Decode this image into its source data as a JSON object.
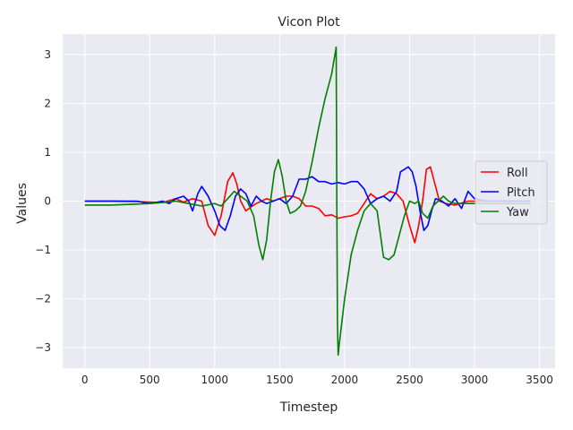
{
  "chart_data": {
    "type": "line",
    "title": "Vicon Plot",
    "xlabel": "Timestep",
    "ylabel": "Values",
    "xlim": [
      -170,
      3620
    ],
    "ylim": [
      -3.42,
      3.42
    ],
    "xticks": [
      0,
      500,
      1000,
      1500,
      2000,
      2500,
      3000,
      3500
    ],
    "xtick_labels": [
      "0",
      "500",
      "1000",
      "1500",
      "2000",
      "2500",
      "3000",
      "3500"
    ],
    "yticks": [
      -3,
      -2,
      -1,
      0,
      1,
      2,
      3
    ],
    "ytick_labels": [
      "−3",
      "−2",
      "−1",
      "0",
      "1",
      "2",
      "3"
    ],
    "grid": true,
    "legend_position": "center-right",
    "background": "#eaeaf2",
    "series": [
      {
        "name": "Roll",
        "color": "#ff0000",
        "x": [
          0,
          200,
          400,
          500,
          600,
          700,
          760,
          830,
          900,
          950,
          1000,
          1050,
          1100,
          1140,
          1170,
          1200,
          1240,
          1280,
          1320,
          1360,
          1400,
          1450,
          1500,
          1550,
          1600,
          1650,
          1700,
          1750,
          1800,
          1850,
          1900,
          1950,
          2000,
          2050,
          2100,
          2150,
          2200,
          2250,
          2300,
          2350,
          2400,
          2450,
          2500,
          2540,
          2570,
          2600,
          2630,
          2660,
          2700,
          2730,
          2780,
          2850,
          2950,
          3050,
          3150,
          3250,
          3350,
          3430
        ],
        "y": [
          0.0,
          0.0,
          -0.01,
          -0.02,
          -0.03,
          0.05,
          -0.02,
          0.05,
          0.0,
          -0.5,
          -0.7,
          -0.3,
          0.4,
          0.58,
          0.35,
          0.0,
          -0.2,
          -0.12,
          -0.05,
          0.0,
          0.05,
          0.0,
          0.05,
          0.1,
          0.1,
          0.05,
          -0.1,
          -0.1,
          -0.15,
          -0.3,
          -0.28,
          -0.35,
          -0.32,
          -0.3,
          -0.25,
          -0.05,
          0.15,
          0.05,
          0.1,
          0.2,
          0.15,
          0.0,
          -0.5,
          -0.85,
          -0.5,
          0.0,
          0.65,
          0.7,
          0.3,
          0.0,
          -0.05,
          -0.08,
          0.0,
          0.0,
          0.0,
          0.0,
          0.0,
          0.0
        ]
      },
      {
        "name": "Pitch",
        "color": "#0000ff",
        "x": [
          0,
          200,
          400,
          500,
          600,
          650,
          700,
          760,
          800,
          830,
          870,
          900,
          950,
          1000,
          1040,
          1080,
          1120,
          1160,
          1200,
          1240,
          1280,
          1320,
          1360,
          1400,
          1450,
          1500,
          1550,
          1600,
          1650,
          1700,
          1750,
          1800,
          1850,
          1900,
          1950,
          2000,
          2050,
          2100,
          2150,
          2200,
          2250,
          2300,
          2350,
          2400,
          2430,
          2460,
          2490,
          2520,
          2550,
          2580,
          2610,
          2640,
          2670,
          2700,
          2750,
          2800,
          2850,
          2900,
          2950,
          3000,
          3100,
          3200,
          3300,
          3430
        ],
        "y": [
          0.0,
          0.0,
          0.0,
          -0.05,
          0.0,
          -0.05,
          0.05,
          0.1,
          0.0,
          -0.2,
          0.15,
          0.3,
          0.1,
          -0.2,
          -0.5,
          -0.6,
          -0.3,
          0.1,
          0.25,
          0.15,
          -0.1,
          0.1,
          0.0,
          -0.05,
          0.0,
          0.05,
          -0.05,
          0.1,
          0.45,
          0.45,
          0.5,
          0.4,
          0.4,
          0.35,
          0.38,
          0.35,
          0.4,
          0.4,
          0.25,
          -0.05,
          0.05,
          0.1,
          0.0,
          0.2,
          0.6,
          0.65,
          0.7,
          0.6,
          0.3,
          -0.2,
          -0.6,
          -0.5,
          -0.2,
          0.05,
          0.0,
          -0.1,
          0.05,
          -0.15,
          0.2,
          0.05,
          0.0,
          0.0,
          0.0,
          0.0
        ]
      },
      {
        "name": "Yaw",
        "color": "#008000",
        "x": [
          0,
          200,
          400,
          500,
          600,
          700,
          800,
          900,
          1000,
          1050,
          1100,
          1150,
          1200,
          1250,
          1300,
          1340,
          1370,
          1400,
          1430,
          1460,
          1490,
          1520,
          1550,
          1580,
          1620,
          1660,
          1700,
          1750,
          1800,
          1850,
          1900,
          1935,
          1940,
          1945,
          1950,
          1960,
          2000,
          2050,
          2100,
          2150,
          2200,
          2250,
          2300,
          2340,
          2380,
          2420,
          2460,
          2500,
          2540,
          2570,
          2600,
          2640,
          2680,
          2720,
          2760,
          2800,
          2850,
          2900,
          2950,
          3000,
          3100,
          3200,
          3300,
          3430
        ],
        "y": [
          -0.08,
          -0.08,
          -0.06,
          -0.05,
          -0.03,
          0.0,
          -0.05,
          -0.1,
          -0.05,
          -0.1,
          0.05,
          0.2,
          0.1,
          0.0,
          -0.3,
          -0.9,
          -1.2,
          -0.8,
          0.0,
          0.6,
          0.85,
          0.5,
          0.0,
          -0.25,
          -0.2,
          -0.1,
          0.2,
          0.8,
          1.5,
          2.1,
          2.6,
          3.15,
          0.0,
          -2.5,
          -3.15,
          -2.9,
          -2.0,
          -1.1,
          -0.6,
          -0.2,
          -0.05,
          -0.2,
          -1.15,
          -1.2,
          -1.1,
          -0.7,
          -0.3,
          0.0,
          -0.05,
          0.0,
          -0.25,
          -0.35,
          -0.1,
          0.0,
          0.1,
          0.0,
          -0.05,
          -0.05,
          -0.05,
          -0.05,
          -0.05,
          -0.05,
          -0.05,
          -0.05
        ]
      }
    ]
  }
}
